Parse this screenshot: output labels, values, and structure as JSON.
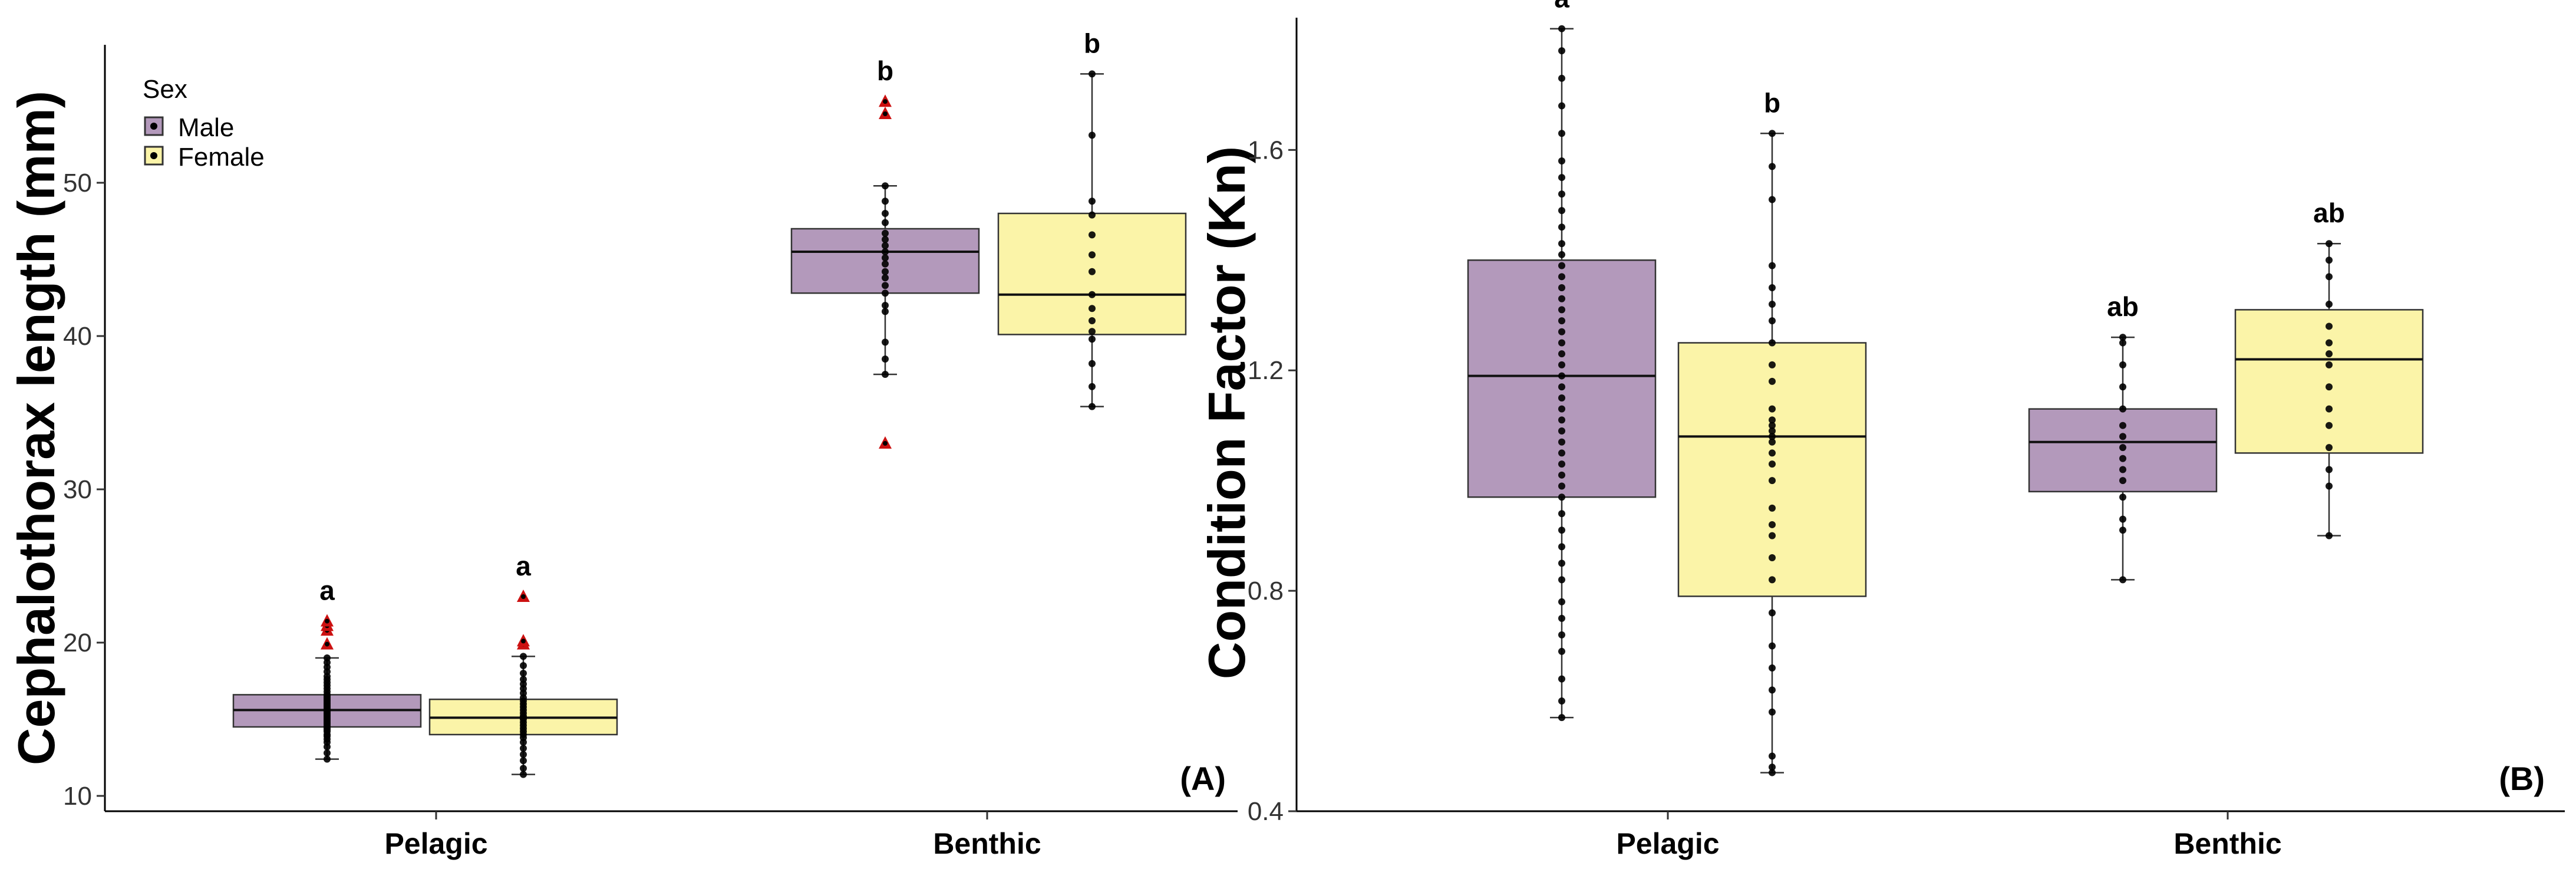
{
  "colors": {
    "male": "#b399bb",
    "female": "#fbf4a8",
    "outlier": "#cc1111",
    "point": "#000000"
  },
  "legend": {
    "title": "Sex",
    "items": [
      "Male",
      "Female"
    ]
  },
  "chart_data": [
    {
      "panel": "(A)",
      "type": "box",
      "ylabel": "Cephalothorax length (mm)",
      "categories": [
        "Pelagic",
        "Benthic"
      ],
      "ylim": [
        9,
        59
      ],
      "yticks": [
        10,
        20,
        30,
        40,
        50
      ],
      "groups": [
        {
          "category": "Pelagic",
          "sex": "Male",
          "min": 12.4,
          "q1": 14.5,
          "median": 15.6,
          "q3": 16.6,
          "max": 19.0,
          "letter": "a",
          "points": [
            12.4,
            12.8,
            13.2,
            13.5,
            13.7,
            13.9,
            14.0,
            14.2,
            14.3,
            14.4,
            14.5,
            14.6,
            14.7,
            14.8,
            14.9,
            15.0,
            15.1,
            15.2,
            15.3,
            15.4,
            15.5,
            15.6,
            15.7,
            15.8,
            15.9,
            16.0,
            16.1,
            16.2,
            16.3,
            16.4,
            16.5,
            16.6,
            16.8,
            17.0,
            17.2,
            17.4,
            17.6,
            17.8,
            18.1,
            18.4,
            18.7,
            19.0
          ],
          "outliers": [
            19.9,
            20.8,
            21.1,
            21.4
          ]
        },
        {
          "category": "Pelagic",
          "sex": "Female",
          "min": 11.4,
          "q1": 14.0,
          "median": 15.1,
          "q3": 16.3,
          "max": 19.1,
          "letter": "a",
          "points": [
            11.4,
            11.8,
            12.3,
            12.7,
            13.1,
            13.5,
            13.8,
            14.0,
            14.2,
            14.4,
            14.6,
            14.8,
            15.0,
            15.1,
            15.2,
            15.4,
            15.6,
            15.8,
            16.0,
            16.2,
            16.4,
            16.7,
            17.0,
            17.3,
            17.6,
            18.0,
            18.5,
            19.1
          ],
          "outliers": [
            19.9,
            20.1,
            23.0
          ]
        },
        {
          "category": "Benthic",
          "sex": "Male",
          "min": 37.5,
          "q1": 42.8,
          "median": 45.5,
          "q3": 47.0,
          "max": 49.8,
          "letter": "b",
          "points": [
            37.5,
            38.5,
            39.6,
            41.6,
            42.0,
            42.8,
            43.3,
            43.8,
            44.2,
            44.7,
            45.1,
            45.5,
            45.9,
            46.3,
            46.7,
            47.4,
            48.0,
            48.8,
            49.8
          ],
          "outliers": [
            33.0,
            54.5,
            55.3
          ]
        },
        {
          "category": "Benthic",
          "sex": "Female",
          "min": 35.4,
          "q1": 40.1,
          "median": 42.7,
          "q3": 48.0,
          "max": 57.1,
          "letter": "b",
          "points": [
            35.4,
            36.7,
            38.2,
            39.8,
            40.3,
            41.0,
            41.8,
            42.7,
            44.2,
            45.3,
            46.6,
            47.9,
            48.8,
            53.1,
            57.1
          ],
          "outliers": []
        }
      ]
    },
    {
      "panel": "(B)",
      "type": "box",
      "ylabel": "Condition Factor (Kn)",
      "categories": [
        "Pelagic",
        "Benthic"
      ],
      "ylim": [
        0.4,
        1.84
      ],
      "yticks": [
        0.4,
        0.8,
        1.2,
        1.6
      ],
      "groups": [
        {
          "category": "Pelagic",
          "sex": "Male",
          "min": 0.57,
          "q1": 0.97,
          "median": 1.19,
          "q3": 1.4,
          "max": 1.82,
          "letter": "a",
          "points": [
            0.57,
            0.6,
            0.64,
            0.69,
            0.72,
            0.75,
            0.78,
            0.82,
            0.85,
            0.88,
            0.91,
            0.94,
            0.97,
            0.99,
            1.01,
            1.03,
            1.05,
            1.07,
            1.09,
            1.11,
            1.13,
            1.15,
            1.17,
            1.19,
            1.21,
            1.23,
            1.25,
            1.27,
            1.29,
            1.31,
            1.33,
            1.35,
            1.37,
            1.39,
            1.41,
            1.43,
            1.46,
            1.49,
            1.52,
            1.55,
            1.58,
            1.63,
            1.68,
            1.73,
            1.78,
            1.82
          ],
          "outliers": []
        },
        {
          "category": "Pelagic",
          "sex": "Female",
          "min": 0.47,
          "q1": 0.79,
          "median": 1.08,
          "q3": 1.25,
          "max": 1.63,
          "letter": "b",
          "points": [
            0.47,
            0.48,
            0.5,
            0.58,
            0.62,
            0.66,
            0.7,
            0.76,
            0.82,
            0.86,
            0.9,
            0.92,
            0.95,
            1.0,
            1.03,
            1.05,
            1.07,
            1.08,
            1.09,
            1.1,
            1.11,
            1.13,
            1.18,
            1.21,
            1.25,
            1.29,
            1.32,
            1.35,
            1.39,
            1.51,
            1.57,
            1.63
          ],
          "outliers": []
        },
        {
          "category": "Benthic",
          "sex": "Male",
          "min": 0.82,
          "q1": 0.98,
          "median": 1.07,
          "q3": 1.13,
          "max": 1.26,
          "letter": "ab",
          "points": [
            0.82,
            0.91,
            0.93,
            0.97,
            1.0,
            1.02,
            1.04,
            1.06,
            1.08,
            1.1,
            1.13,
            1.17,
            1.21,
            1.25,
            1.26
          ],
          "outliers": []
        },
        {
          "category": "Benthic",
          "sex": "Female",
          "min": 0.9,
          "q1": 1.05,
          "median": 1.22,
          "q3": 1.31,
          "max": 1.43,
          "letter": "ab",
          "points": [
            0.9,
            0.99,
            1.02,
            1.06,
            1.1,
            1.13,
            1.17,
            1.21,
            1.23,
            1.25,
            1.28,
            1.32,
            1.37,
            1.4,
            1.43
          ],
          "outliers": []
        }
      ]
    }
  ]
}
